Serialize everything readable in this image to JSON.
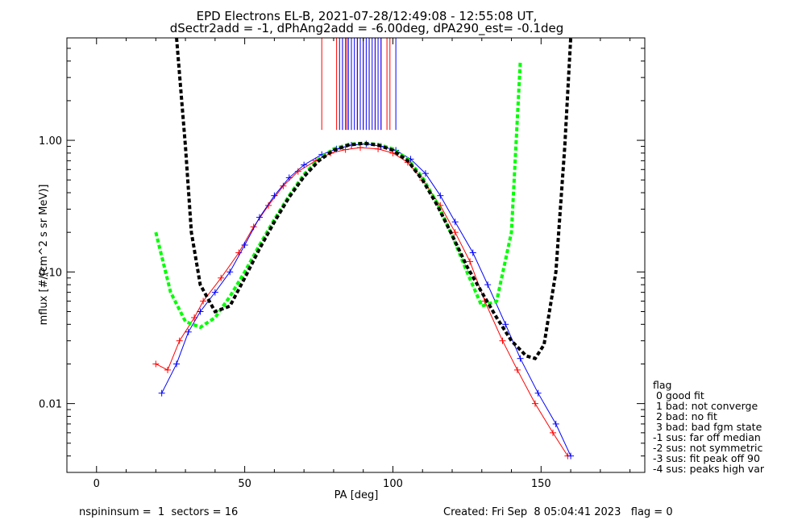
{
  "chart_data": {
    "type": "scatter",
    "title": [
      "EPD Electrons EL-B, 2021-07-28/12:49:08 - 12:55:08 UT,",
      "dSectr2add = -1, dPhAng2add = -6.00deg, dPA290_est=  -0.1deg"
    ],
    "xlabel": "PA [deg]",
    "ylabel": "mflux [#/(cm^2 s sr MeV)]",
    "xlim": [
      -10,
      185
    ],
    "ylim": [
      0.003,
      6.0
    ],
    "yscale": "log",
    "x_ticks": [
      {
        "v": 0,
        "label": "0"
      },
      {
        "v": 50,
        "label": "50"
      },
      {
        "v": 100,
        "label": "100"
      },
      {
        "v": 150,
        "label": "150"
      }
    ],
    "y_ticks": [
      {
        "v": 0.01,
        "label": "0.01"
      },
      {
        "v": 0.1,
        "label": "0.10"
      },
      {
        "v": 1.0,
        "label": "1.00"
      }
    ],
    "series": [
      {
        "color": "#ff0000",
        "marker": "+",
        "x": [
          20,
          24,
          28,
          33,
          36,
          42,
          48,
          53,
          58,
          63,
          68,
          74,
          79,
          84,
          89,
          95,
          100,
          105,
          110,
          116,
          121,
          126,
          131,
          137,
          142,
          148,
          154,
          159
        ],
        "y": [
          0.02,
          0.018,
          0.03,
          0.045,
          0.06,
          0.09,
          0.14,
          0.22,
          0.32,
          0.45,
          0.58,
          0.7,
          0.8,
          0.85,
          0.88,
          0.86,
          0.8,
          0.68,
          0.5,
          0.32,
          0.2,
          0.12,
          0.06,
          0.03,
          0.018,
          0.01,
          0.006,
          0.004
        ]
      },
      {
        "color": "#0000ff",
        "marker": "+",
        "x": [
          22,
          27,
          31,
          35,
          40,
          45,
          50,
          55,
          60,
          65,
          70,
          76,
          81,
          86,
          91,
          96,
          101,
          106,
          111,
          116,
          121,
          127,
          132,
          138,
          143,
          149,
          155,
          160
        ],
        "y": [
          0.012,
          0.02,
          0.035,
          0.05,
          0.07,
          0.1,
          0.16,
          0.26,
          0.38,
          0.52,
          0.65,
          0.78,
          0.86,
          0.92,
          0.94,
          0.9,
          0.84,
          0.72,
          0.56,
          0.38,
          0.24,
          0.14,
          0.08,
          0.04,
          0.022,
          0.012,
          0.007,
          0.004
        ]
      },
      {
        "color": "#00ff00",
        "marker": "none",
        "dashed": true,
        "x": [
          20,
          25,
          30,
          35,
          40,
          45,
          50,
          55,
          60,
          65,
          70,
          75,
          80,
          85,
          90,
          95,
          100,
          105,
          110,
          115,
          120,
          125,
          130,
          135,
          140,
          143
        ],
        "y": [
          0.2,
          0.07,
          0.042,
          0.038,
          0.045,
          0.065,
          0.1,
          0.16,
          0.25,
          0.38,
          0.55,
          0.72,
          0.86,
          0.93,
          0.95,
          0.93,
          0.86,
          0.72,
          0.52,
          0.33,
          0.19,
          0.1,
          0.055,
          0.06,
          0.2,
          4.0
        ]
      },
      {
        "color": "#000000",
        "marker": "none",
        "dashed": true,
        "x": [
          27,
          30,
          32,
          35,
          40,
          45,
          50,
          55,
          60,
          65,
          70,
          75,
          80,
          85,
          90,
          95,
          100,
          105,
          110,
          115,
          120,
          125,
          130,
          135,
          140,
          145,
          148,
          151,
          155,
          158,
          160
        ],
        "y": [
          6.0,
          0.9,
          0.2,
          0.08,
          0.05,
          0.055,
          0.09,
          0.15,
          0.24,
          0.37,
          0.53,
          0.7,
          0.84,
          0.92,
          0.95,
          0.92,
          0.84,
          0.7,
          0.5,
          0.32,
          0.19,
          0.11,
          0.07,
          0.045,
          0.03,
          0.023,
          0.022,
          0.028,
          0.1,
          0.9,
          6.0
        ]
      }
    ],
    "vlines": [
      {
        "color": "#ff0000",
        "x": [
          76,
          81,
          83,
          84.5,
          86,
          88,
          90,
          92,
          94,
          96,
          98,
          99
        ]
      },
      {
        "color": "#0000ff",
        "x": [
          82,
          83,
          84,
          85,
          86,
          87,
          88,
          89,
          90,
          91,
          92,
          93,
          94,
          95,
          96,
          101
        ]
      }
    ],
    "legend": {
      "position": "right",
      "title": "flag",
      "entries": [
        " 0 good fit",
        " 1 bad: not converge",
        " 2 bad: no fit",
        " 3 bad: bad fgm state",
        "-1 sus: far off median",
        "-2 sus: not symmetric",
        "-3 sus: fit peak off 90",
        "-4 sus: peaks high var"
      ]
    },
    "footer": {
      "left": "nspininsum =  1  sectors = 16",
      "right": "Created: Fri Sep  8 05:04:41 2023   flag = 0"
    }
  }
}
